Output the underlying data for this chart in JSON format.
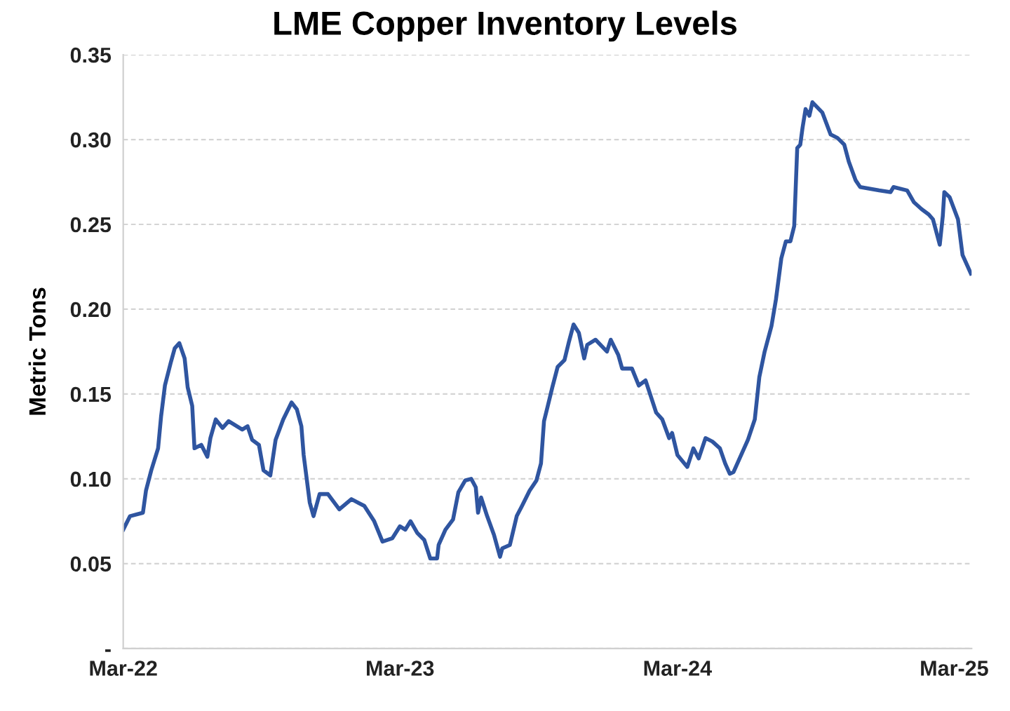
{
  "chart_data": {
    "type": "line",
    "title": "LME Copper Inventory Levels",
    "ylabel": "Metric Tons",
    "x": [
      "2022-03-01",
      "2022-03-10",
      "2022-03-27",
      "2022-03-31",
      "2022-04-07",
      "2022-04-16",
      "2022-04-20",
      "2022-04-25",
      "2022-05-03",
      "2022-05-08",
      "2022-05-14",
      "2022-05-21",
      "2022-05-25",
      "2022-05-31",
      "2022-06-03",
      "2022-06-12",
      "2022-06-20",
      "2022-06-24",
      "2022-07-01",
      "2022-07-10",
      "2022-07-18",
      "2022-08-05",
      "2022-08-12",
      "2022-08-18",
      "2022-08-27",
      "2022-09-02",
      "2022-09-11",
      "2022-09-18",
      "2022-09-28",
      "2022-10-09",
      "2022-10-16",
      "2022-10-22",
      "2022-10-25",
      "2022-11-02",
      "2022-11-07",
      "2022-11-15",
      "2022-11-26",
      "2022-12-11",
      "2022-12-27",
      "2023-01-13",
      "2023-01-26",
      "2023-02-06",
      "2023-02-19",
      "2023-03-01",
      "2023-03-08",
      "2023-03-15",
      "2023-03-24",
      "2023-04-02",
      "2023-04-10",
      "2023-04-19",
      "2023-04-21",
      "2023-04-30",
      "2023-05-10",
      "2023-05-17",
      "2023-05-26",
      "2023-06-03",
      "2023-06-09",
      "2023-06-12",
      "2023-06-16",
      "2023-06-24",
      "2023-07-03",
      "2023-07-11",
      "2023-07-14",
      "2023-07-24",
      "2023-08-02",
      "2023-08-09",
      "2023-08-19",
      "2023-08-28",
      "2023-09-03",
      "2023-09-07",
      "2023-09-12",
      "2023-09-18",
      "2023-09-25",
      "2023-10-04",
      "2023-10-10",
      "2023-10-16",
      "2023-10-23",
      "2023-10-30",
      "2023-11-03",
      "2023-11-14",
      "2023-11-29",
      "2023-12-04",
      "2023-12-14",
      "2023-12-19",
      "2024-01-01",
      "2024-01-10",
      "2024-01-19",
      "2024-02-02",
      "2024-02-10",
      "2024-02-19",
      "2024-02-23",
      "2024-03-01",
      "2024-03-14",
      "2024-03-22",
      "2024-03-29",
      "2024-04-07",
      "2024-04-16",
      "2024-04-26",
      "2024-05-03",
      "2024-05-09",
      "2024-05-14",
      "2024-05-24",
      "2024-06-02",
      "2024-06-11",
      "2024-06-17",
      "2024-06-24",
      "2024-07-03",
      "2024-07-09",
      "2024-07-16",
      "2024-07-22",
      "2024-07-28",
      "2024-08-02",
      "2024-08-06",
      "2024-08-10",
      "2024-08-13",
      "2024-08-17",
      "2024-08-22",
      "2024-08-26",
      "2024-09-08",
      "2024-09-19",
      "2024-09-28",
      "2024-10-07",
      "2024-10-13",
      "2024-10-22",
      "2024-10-28",
      "2024-11-22",
      "2024-12-07",
      "2024-12-11",
      "2024-12-29",
      "2025-01-07",
      "2025-01-17",
      "2025-01-26",
      "2025-02-01",
      "2025-02-10",
      "2025-02-14",
      "2025-02-16",
      "2025-02-23",
      "2025-03-06",
      "2025-03-12",
      "2025-03-23"
    ],
    "series": [
      {
        "color": "#2f55a0",
        "values": [
          0.07,
          0.078,
          0.08,
          0.093,
          0.105,
          0.118,
          0.137,
          0.155,
          0.169,
          0.177,
          0.18,
          0.171,
          0.154,
          0.143,
          0.118,
          0.12,
          0.113,
          0.124,
          0.135,
          0.13,
          0.134,
          0.129,
          0.131,
          0.123,
          0.12,
          0.105,
          0.102,
          0.123,
          0.135,
          0.145,
          0.141,
          0.131,
          0.114,
          0.086,
          0.078,
          0.091,
          0.091,
          0.082,
          0.088,
          0.084,
          0.075,
          0.063,
          0.065,
          0.072,
          0.07,
          0.075,
          0.068,
          0.064,
          0.053,
          0.053,
          0.061,
          0.07,
          0.076,
          0.092,
          0.099,
          0.1,
          0.095,
          0.08,
          0.089,
          0.078,
          0.067,
          0.054,
          0.059,
          0.061,
          0.078,
          0.084,
          0.093,
          0.099,
          0.109,
          0.134,
          0.143,
          0.154,
          0.166,
          0.17,
          0.181,
          0.191,
          0.186,
          0.171,
          0.179,
          0.182,
          0.175,
          0.182,
          0.173,
          0.165,
          0.165,
          0.155,
          0.158,
          0.139,
          0.135,
          0.124,
          0.127,
          0.114,
          0.107,
          0.118,
          0.112,
          0.124,
          0.122,
          0.118,
          0.109,
          0.103,
          0.104,
          0.114,
          0.123,
          0.135,
          0.16,
          0.175,
          0.19,
          0.206,
          0.23,
          0.24,
          0.24,
          0.249,
          0.295,
          0.297,
          0.307,
          0.318,
          0.314,
          0.322,
          0.316,
          0.303,
          0.301,
          0.297,
          0.287,
          0.276,
          0.272,
          0.27,
          0.269,
          0.272,
          0.27,
          0.263,
          0.259,
          0.256,
          0.253,
          0.238,
          0.255,
          0.269,
          0.266,
          0.253,
          0.232,
          0.221
        ]
      }
    ],
    "xlim": [
      "2022-03-01",
      "2025-03-24"
    ],
    "xticks": [
      {
        "value": "2022-03-01",
        "label": "Mar-22"
      },
      {
        "value": "2023-03-01",
        "label": "Mar-23"
      },
      {
        "value": "2024-03-01",
        "label": "Mar-24"
      },
      {
        "value": "2025-03-01",
        "label": "Mar-25"
      }
    ],
    "ylim": [
      0,
      0.35
    ],
    "yticks": [
      {
        "value": 0,
        "label": "-"
      },
      {
        "value": 0.05,
        "label": "0.05"
      },
      {
        "value": 0.1,
        "label": "0.10"
      },
      {
        "value": 0.15,
        "label": "0.15"
      },
      {
        "value": 0.2,
        "label": "0.20"
      },
      {
        "value": 0.25,
        "label": "0.25"
      },
      {
        "value": 0.3,
        "label": "0.30"
      },
      {
        "value": 0.35,
        "label": "0.35"
      }
    ],
    "grid": "y",
    "marker": "none",
    "line_style": "solid"
  }
}
